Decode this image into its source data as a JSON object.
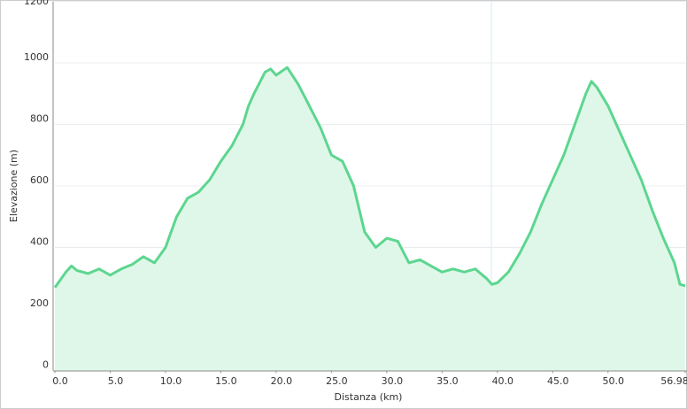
{
  "chart_data": {
    "type": "area",
    "x_label": "Distanza (km)",
    "y_label": "Elevazione (m)",
    "xlim": [
      0,
      56.98
    ],
    "ylim": [
      0,
      1200
    ],
    "xticks": [
      {
        "value": 0,
        "label": "0.0"
      },
      {
        "value": 5,
        "label": "5.0"
      },
      {
        "value": 10,
        "label": "10.0"
      },
      {
        "value": 15,
        "label": "15.0"
      },
      {
        "value": 20,
        "label": "20.0"
      },
      {
        "value": 25,
        "label": "25.0"
      },
      {
        "value": 30,
        "label": "30.0"
      },
      {
        "value": 35,
        "label": "35.0"
      },
      {
        "value": 40,
        "label": "40.0"
      },
      {
        "value": 45,
        "label": "45.0"
      },
      {
        "value": 50,
        "label": "50.0"
      },
      56.98
    ],
    "yticks": [
      0,
      200,
      400,
      600,
      800,
      1000,
      1200
    ],
    "grid": true,
    "color": "#5cd68f",
    "fill_color": "#dff7e9",
    "x": [
      0,
      1,
      1.5,
      2,
      3,
      4,
      5,
      6,
      7,
      8,
      9,
      10,
      10.5,
      11,
      12,
      12.5,
      13,
      14,
      15,
      16,
      17,
      17.5,
      18,
      19,
      19.5,
      20,
      21,
      22,
      23,
      24,
      25,
      26,
      27,
      28,
      29,
      30,
      31,
      32,
      33,
      34,
      35,
      36,
      37,
      38,
      39,
      39.5,
      40,
      41,
      42,
      43,
      44,
      45,
      46,
      47,
      48,
      48.5,
      49,
      50,
      51,
      52,
      53,
      54,
      55,
      56,
      56.5,
      56.98
    ],
    "values": [
      270,
      320,
      340,
      325,
      315,
      330,
      310,
      330,
      345,
      370,
      350,
      400,
      450,
      500,
      560,
      570,
      580,
      620,
      680,
      730,
      800,
      860,
      900,
      970,
      980,
      960,
      985,
      930,
      860,
      790,
      700,
      680,
      600,
      450,
      400,
      430,
      420,
      350,
      360,
      340,
      320,
      330,
      320,
      330,
      300,
      280,
      285,
      320,
      380,
      450,
      540,
      620,
      700,
      800,
      900,
      940,
      920,
      860,
      780,
      700,
      620,
      520,
      430,
      350,
      280,
      275
    ]
  }
}
